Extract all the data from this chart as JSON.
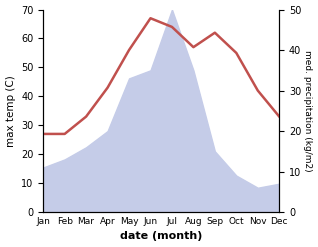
{
  "months": [
    "Jan",
    "Feb",
    "Mar",
    "Apr",
    "May",
    "Jun",
    "Jul",
    "Aug",
    "Sep",
    "Oct",
    "Nov",
    "Dec"
  ],
  "month_indices": [
    1,
    2,
    3,
    4,
    5,
    6,
    7,
    8,
    9,
    10,
    11,
    12
  ],
  "temperature": [
    27,
    27,
    33,
    43,
    56,
    67,
    64,
    57,
    62,
    55,
    42,
    33
  ],
  "precipitation": [
    11,
    13,
    16,
    20,
    33,
    35,
    50,
    35,
    15,
    9,
    6,
    7
  ],
  "temp_color": "#c0504d",
  "precip_fill_color": "#c5cce8",
  "precip_fill_alpha": 1.0,
  "temp_ylim": [
    0,
    70
  ],
  "precip_ylim": [
    0,
    50
  ],
  "xlabel": "date (month)",
  "ylabel_left": "max temp (C)",
  "ylabel_right": "med. precipitation (kg/m2)",
  "temp_yticks": [
    0,
    10,
    20,
    30,
    40,
    50,
    60,
    70
  ],
  "precip_yticks": [
    0,
    10,
    20,
    30,
    40,
    50
  ],
  "line_width": 1.8,
  "tick_fontsize": 7,
  "xlabel_fontsize": 8,
  "ylabel_fontsize": 7.5,
  "ylabel_right_fontsize": 6.5
}
